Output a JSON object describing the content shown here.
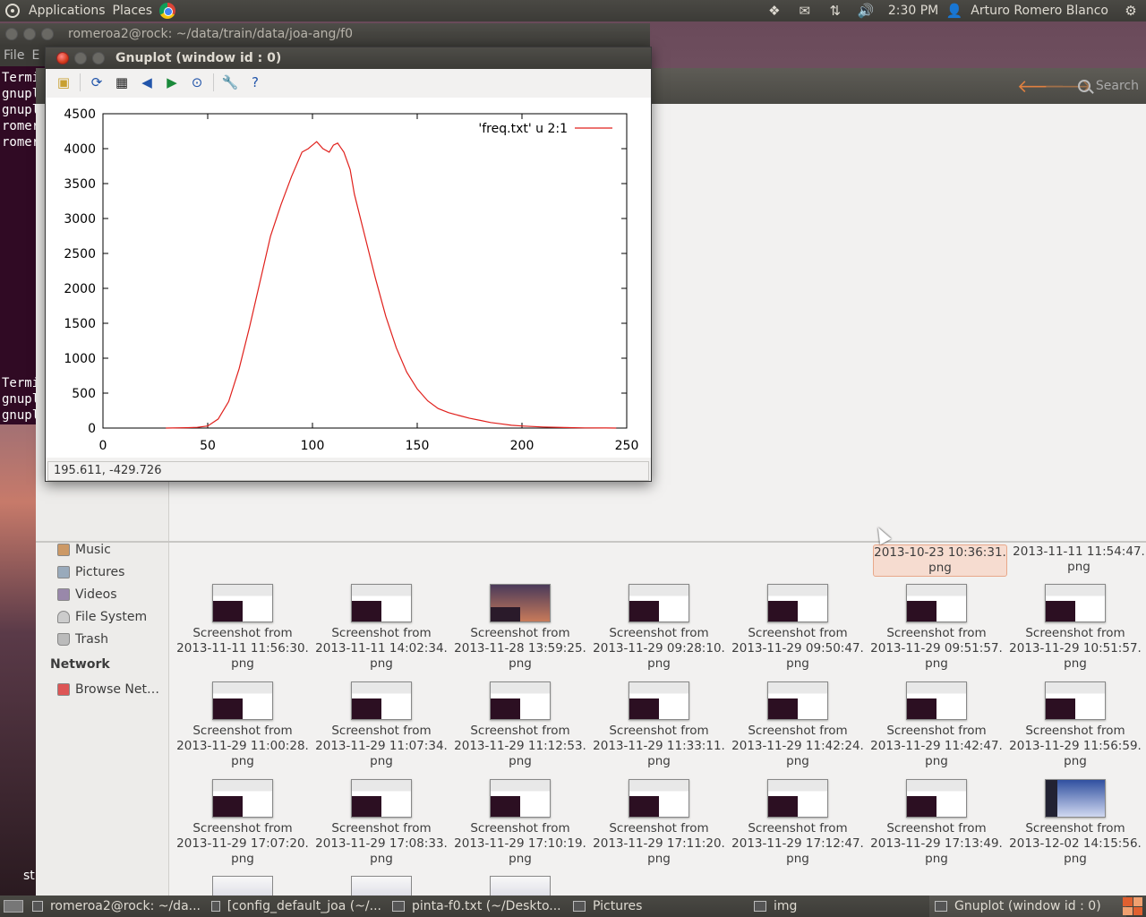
{
  "top_panel": {
    "applications_label": "Applications",
    "places_label": "Places",
    "clock": "2:30 PM",
    "user_name": "Arturo Romero Blanco"
  },
  "terminal": {
    "title": "romeroa2@rock: ~/data/train/data/joa-ang/f0",
    "menu": [
      "File",
      "E"
    ],
    "lines_top": [
      "Termi",
      "gnuplo",
      "gnuplo",
      "romero",
      "romero"
    ],
    "lines_bottom": [
      "Termi",
      "gnuplo",
      "gnuplo"
    ]
  },
  "gnuplot": {
    "title": "Gnuplot (window id : 0)",
    "status_coords": "195.611, -429.726"
  },
  "chart_data": {
    "type": "line",
    "title": "",
    "xlabel": "",
    "ylabel": "",
    "xlim": [
      0,
      250
    ],
    "ylim": [
      0,
      4500
    ],
    "xticks": [
      "0",
      "50",
      "100",
      "150",
      "200",
      "250"
    ],
    "yticks": [
      "0",
      "500",
      "1000",
      "1500",
      "2000",
      "2500",
      "3000",
      "3500",
      "4000",
      "4500"
    ],
    "grid": false,
    "legend_position": "top-right",
    "series": [
      {
        "name": "'freq.txt' u 2:1",
        "color": "#e0201c",
        "x": [
          30,
          40,
          45,
          50,
          55,
          60,
          65,
          70,
          75,
          80,
          85,
          90,
          95,
          98,
          100,
          102,
          105,
          108,
          110,
          112,
          115,
          118,
          120,
          125,
          130,
          135,
          140,
          145,
          150,
          155,
          160,
          165,
          170,
          175,
          180,
          185,
          190,
          195,
          200,
          210,
          220,
          230,
          240,
          245
        ],
        "y": [
          0,
          5,
          10,
          30,
          130,
          380,
          850,
          1450,
          2100,
          2750,
          3200,
          3600,
          3950,
          4000,
          4050,
          4100,
          4000,
          3950,
          4050,
          4080,
          3950,
          3700,
          3350,
          2750,
          2150,
          1600,
          1150,
          800,
          560,
          390,
          280,
          220,
          180,
          140,
          110,
          80,
          60,
          40,
          30,
          15,
          8,
          3,
          1,
          0
        ]
      }
    ]
  },
  "file_manager": {
    "search_label": "Search",
    "sidebar": {
      "places": [
        {
          "label": "Music",
          "icon": "music-icon"
        },
        {
          "label": "Pictures",
          "icon": "pictures-icon"
        },
        {
          "label": "Videos",
          "icon": "videos-icon"
        },
        {
          "label": "File System",
          "icon": "drive-icon"
        },
        {
          "label": "Trash",
          "icon": "trash-icon"
        }
      ],
      "network_heading": "Network",
      "network_items": [
        {
          "label": "Browse Net…",
          "icon": "network-icon"
        }
      ]
    },
    "partial_row": [
      {
        "line1": "2013-10-23 10:36:31.",
        "line2": "png"
      },
      {
        "line1": "2013-11-11 11:54:47.",
        "line2": "png"
      }
    ],
    "files": [
      {
        "line1": "Screenshot from",
        "line2": "2013-11-11 11:56:30.",
        "line3": "png",
        "thumb": "light"
      },
      {
        "line1": "Screenshot from",
        "line2": "2013-11-11 14:02:34.",
        "line3": "png",
        "thumb": "light"
      },
      {
        "line1": "Screenshot from",
        "line2": "2013-11-28 13:59:25.",
        "line3": "png",
        "thumb": "dark"
      },
      {
        "line1": "Screenshot from",
        "line2": "2013-11-29 09:28:10.",
        "line3": "png",
        "thumb": "light"
      },
      {
        "line1": "Screenshot from",
        "line2": "2013-11-29 09:50:47.",
        "line3": "png",
        "thumb": "light"
      },
      {
        "line1": "Screenshot from",
        "line2": "2013-11-29 09:51:57.",
        "line3": "png",
        "thumb": "light"
      },
      {
        "line1": "Screenshot from",
        "line2": "2013-11-29 10:51:57.",
        "line3": "png",
        "thumb": "light"
      },
      {
        "line1": "Screenshot from",
        "line2": "2013-11-29 11:00:28.",
        "line3": "png",
        "thumb": "light"
      },
      {
        "line1": "Screenshot from",
        "line2": "2013-11-29 11:07:34.",
        "line3": "png",
        "thumb": "light"
      },
      {
        "line1": "Screenshot from",
        "line2": "2013-11-29 11:12:53.",
        "line3": "png",
        "thumb": "light"
      },
      {
        "line1": "Screenshot from",
        "line2": "2013-11-29 11:33:11.",
        "line3": "png",
        "thumb": "light"
      },
      {
        "line1": "Screenshot from",
        "line2": "2013-11-29 11:42:24.",
        "line3": "png",
        "thumb": "light"
      },
      {
        "line1": "Screenshot from",
        "line2": "2013-11-29 11:42:47.",
        "line3": "png",
        "thumb": "light"
      },
      {
        "line1": "Screenshot from",
        "line2": "2013-11-29 11:56:59.",
        "line3": "png",
        "thumb": "light"
      },
      {
        "line1": "Screenshot from",
        "line2": "2013-11-29 17:07:20.",
        "line3": "png",
        "thumb": "light"
      },
      {
        "line1": "Screenshot from",
        "line2": "2013-11-29 17:08:33.",
        "line3": "png",
        "thumb": "light"
      },
      {
        "line1": "Screenshot from",
        "line2": "2013-11-29 17:10:19.",
        "line3": "png",
        "thumb": "light"
      },
      {
        "line1": "Screenshot from",
        "line2": "2013-11-29 17:11:20.",
        "line3": "png",
        "thumb": "light"
      },
      {
        "line1": "Screenshot from",
        "line2": "2013-11-29 17:12:47.",
        "line3": "png",
        "thumb": "light"
      },
      {
        "line1": "Screenshot from",
        "line2": "2013-11-29 17:13:49.",
        "line3": "png",
        "thumb": "light"
      },
      {
        "line1": "Screenshot from",
        "line2": "2013-12-02 14:15:56.",
        "line3": "png",
        "thumb": "blue"
      }
    ]
  },
  "desktop": {
    "partial_label": "st"
  },
  "taskbar": {
    "items": [
      {
        "label": "romeroa2@rock: ~/da...",
        "icon": "terminal-icon"
      },
      {
        "label": "[config_default_joa (~/...",
        "icon": "text-editor-icon"
      },
      {
        "label": "pinta-f0.txt (~/Deskto...",
        "icon": "text-editor-icon"
      },
      {
        "label": "Pictures",
        "icon": "folder-icon"
      },
      {
        "label": "img",
        "icon": "folder-icon"
      },
      {
        "label": "Gnuplot (window id : 0)",
        "icon": "gnuplot-icon",
        "active": true
      }
    ]
  }
}
